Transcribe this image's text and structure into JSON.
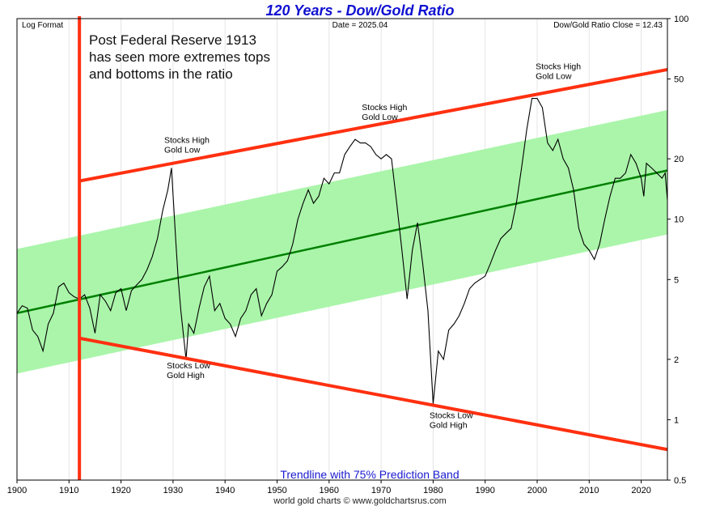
{
  "chart_data": {
    "type": "line",
    "title": "120 Years - Dow/Gold Ratio",
    "top_left_label": "Log Format",
    "top_center_label": "Date = 2025.04",
    "top_right_label": "Dow/Gold Ratio Close = 12.43",
    "bottom_label": "Trendline with 75% Prediction Band",
    "credit": "world gold charts © www.goldchartsrus.com",
    "note_lines": [
      "Post Federal Reserve 1913",
      "has seen more extremes tops",
      "and bottoms in the ratio"
    ],
    "x_axis": {
      "range": [
        1900,
        2025.04
      ],
      "ticks": [
        1900,
        1910,
        1920,
        1930,
        1940,
        1950,
        1960,
        1970,
        1980,
        1990,
        2000,
        2010,
        2020
      ]
    },
    "y_axis": {
      "scale": "log",
      "position": "right",
      "range": [
        0.5,
        100
      ],
      "ticks": [
        0.5,
        1,
        2,
        5,
        10,
        20,
        50,
        100
      ]
    },
    "grid": "vertical",
    "series": [
      {
        "color": "#000000",
        "x": [
          1900,
          1901,
          1902,
          1903,
          1904,
          1905,
          1906,
          1907,
          1908,
          1909,
          1910,
          1911,
          1912,
          1913,
          1914,
          1915,
          1916,
          1917,
          1918,
          1919,
          1920,
          1921,
          1922,
          1923,
          1924,
          1925,
          1926,
          1927,
          1928,
          1929,
          1929.7,
          1930.5,
          1931,
          1931.5,
          1932.5,
          1933,
          1934,
          1935,
          1936,
          1937,
          1938,
          1939,
          1940,
          1941,
          1942,
          1943,
          1944,
          1945,
          1946,
          1947,
          1948,
          1949,
          1950,
          1951,
          1952,
          1953,
          1954,
          1955,
          1956,
          1957,
          1958,
          1959,
          1960,
          1961,
          1962,
          1963,
          1964,
          1965,
          1966,
          1967,
          1968,
          1969,
          1970,
          1971,
          1972,
          1973,
          1974,
          1975,
          1976,
          1977,
          1978,
          1979,
          1980,
          1981,
          1982,
          1983,
          1984,
          1985,
          1986,
          1987,
          1988,
          1989,
          1990,
          1991,
          1992,
          1993,
          1994,
          1995,
          1996,
          1997,
          1998,
          1999,
          2000,
          2001,
          2002,
          2003,
          2004,
          2005,
          2006,
          2007,
          2008,
          2009,
          2010,
          2011,
          2012,
          2013,
          2014,
          2015,
          2016,
          2017,
          2018,
          2019,
          2020,
          2020.5,
          2021,
          2022,
          2023,
          2024,
          2024.6,
          2025.04
        ],
        "values": [
          3.4,
          3.7,
          3.6,
          2.8,
          2.6,
          2.2,
          3.0,
          3.4,
          4.6,
          4.8,
          4.3,
          4.1,
          4.0,
          4.2,
          3.6,
          2.7,
          4.2,
          3.9,
          3.5,
          4.3,
          4.5,
          3.5,
          4.4,
          4.7,
          5.0,
          5.6,
          6.5,
          8.0,
          11,
          14,
          18,
          8,
          5,
          3.5,
          2.0,
          3.0,
          2.7,
          3.6,
          4.6,
          5.2,
          3.5,
          3.8,
          3.2,
          3.0,
          2.6,
          3.2,
          3.5,
          4.2,
          4.5,
          3.3,
          3.8,
          4.2,
          5.5,
          5.8,
          6.2,
          7.5,
          10,
          12,
          14,
          12,
          13,
          16,
          15,
          17,
          17,
          21,
          23,
          25,
          24,
          24,
          23,
          21,
          20,
          21,
          20,
          12,
          7,
          4,
          7,
          9.6,
          6,
          3.5,
          1.2,
          2.2,
          2.0,
          2.8,
          3.0,
          3.3,
          3.8,
          4.5,
          4.8,
          5.0,
          5.2,
          6.0,
          7.0,
          8.0,
          8.5,
          9.0,
          12,
          18,
          28,
          40,
          40,
          36,
          24,
          22,
          25,
          20,
          18,
          14,
          9,
          7.5,
          7,
          6.3,
          7.5,
          10,
          13,
          16,
          16,
          17,
          21,
          19,
          16,
          13,
          19,
          18,
          17,
          16,
          17,
          12.43
        ]
      }
    ],
    "trendline": {
      "color": "#008000",
      "x": [
        1900,
        2025.04
      ],
      "values": [
        3.4,
        17.5
      ]
    },
    "prediction_band": {
      "label": "75% Prediction Band",
      "color": "#aaf5aa",
      "x": [
        1900,
        2025.04
      ],
      "upper": [
        7.1,
        35
      ],
      "lower": [
        1.7,
        8.4
      ]
    },
    "red_lines": {
      "color": "#ff3010",
      "vertical_x": 1912,
      "upper": {
        "x": [
          1912,
          2025.04
        ],
        "values": [
          15.5,
          55.7
        ]
      },
      "lower": {
        "x": [
          1912,
          2025.04
        ],
        "values": [
          2.55,
          0.71
        ]
      }
    },
    "annotations": [
      {
        "lines": [
          "Stocks High",
          "Gold Low"
        ],
        "x": 1928.3,
        "y": 24
      },
      {
        "lines": [
          "Stocks High",
          "Gold Low"
        ],
        "x": 1966.3,
        "y": 35
      },
      {
        "lines": [
          "Stocks High",
          "Gold Low"
        ],
        "x": 1999.7,
        "y": 56
      },
      {
        "lines": [
          "Stocks Low",
          "Gold High"
        ],
        "x": 1928.8,
        "y": 1.8
      },
      {
        "lines": [
          "Stocks Low",
          "Gold High"
        ],
        "x": 1979.3,
        "y": 1.02
      }
    ]
  }
}
